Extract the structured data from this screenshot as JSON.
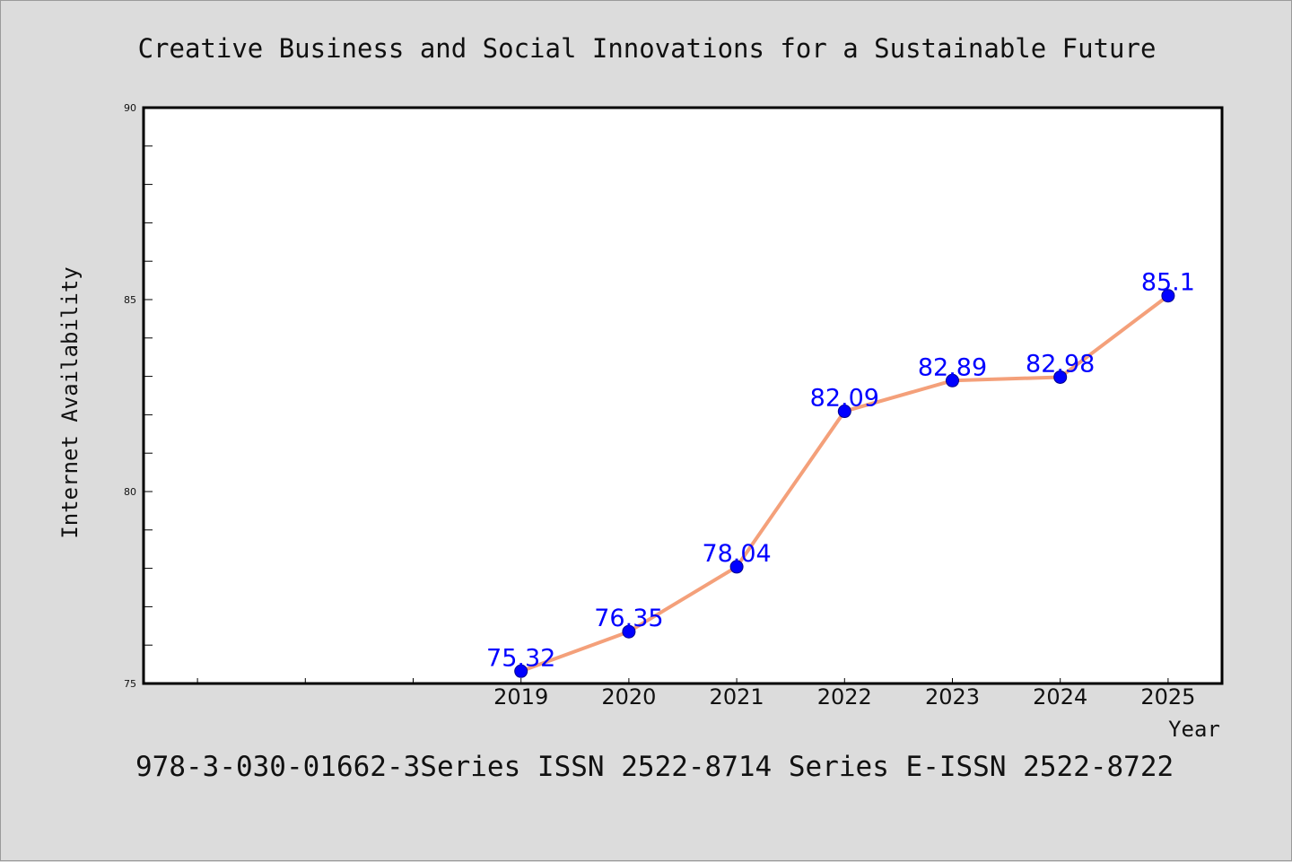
{
  "colors": {
    "background": "#dcdcdc",
    "plot_background": "#ffffff",
    "line": "#f4a07a",
    "marker": "#0000ff",
    "label": "#0000ff"
  },
  "footer": "978-3-030-01662-3Series ISSN 2522-8714 Series E-ISSN 2522-8722",
  "chart_data": {
    "type": "line",
    "title": "Creative Business and Social Innovations for a Sustainable Future",
    "xlabel": "Year",
    "ylabel": "Internet Availability",
    "x": [
      2019,
      2020,
      2021,
      2022,
      2023,
      2024,
      2025
    ],
    "xlim": [
      2015.5,
      2025.5
    ],
    "ylim": [
      75,
      90
    ],
    "yticks": [
      75,
      80,
      85,
      90
    ],
    "xticks": [
      2019,
      2020,
      2021,
      2022,
      2023,
      2024,
      2025
    ],
    "series": [
      {
        "values": [
          75.32,
          76.35,
          78.04,
          82.09,
          82.89,
          82.98,
          85.1
        ],
        "labels": [
          "75.32",
          "76.35",
          "78.04",
          "82.09",
          "82.89",
          "82.98",
          "85.1"
        ]
      }
    ],
    "grid": false,
    "legend": "none"
  }
}
